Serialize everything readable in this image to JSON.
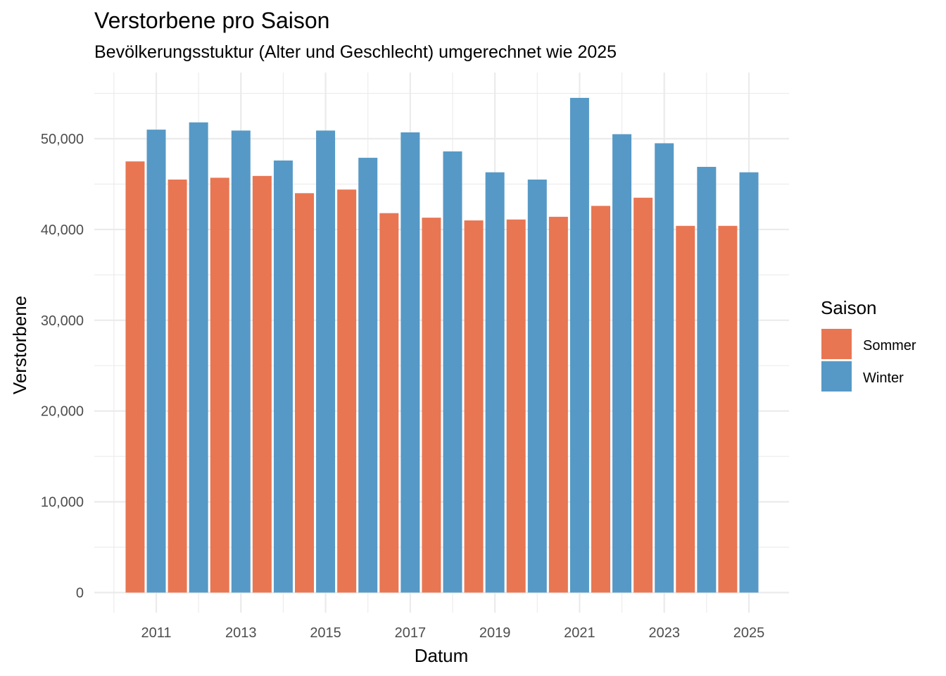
{
  "chart_data": {
    "type": "bar",
    "title": "Verstorbene pro Saison",
    "subtitle": "Bevölkerungsstuktur (Alter und Geschlecht) umgerechnet wie 2025",
    "xlabel": "Datum",
    "ylabel": "Verstorbene",
    "ylim": [
      0,
      55000
    ],
    "xlim": [
      2009.85,
      2025.85
    ],
    "y_ticks": [
      0,
      10000,
      20000,
      30000,
      40000,
      50000
    ],
    "y_tick_labels": [
      "0",
      "10,000",
      "20,000",
      "30,000",
      "40,000",
      "50,000"
    ],
    "x_ticks": [
      2011,
      2013,
      2015,
      2017,
      2019,
      2021,
      2023,
      2025
    ],
    "x_tick_labels": [
      "2011",
      "2013",
      "2015",
      "2017",
      "2019",
      "2021",
      "2023",
      "2025"
    ],
    "legend": {
      "title": "Saison",
      "position": "right",
      "entries": [
        "Sommer",
        "Winter"
      ]
    },
    "grid": true,
    "series": [
      {
        "name": "Sommer",
        "color": "#E87653",
        "x": [
          2010.5,
          2011.5,
          2012.5,
          2013.5,
          2014.5,
          2015.5,
          2016.5,
          2017.5,
          2018.5,
          2019.5,
          2020.5,
          2021.5,
          2022.5,
          2023.5,
          2024.5
        ],
        "values": [
          47500,
          45500,
          45700,
          45900,
          44000,
          44400,
          41800,
          41300,
          41000,
          41100,
          41400,
          42600,
          43500,
          40400,
          40400
        ]
      },
      {
        "name": "Winter",
        "color": "#5699C6",
        "x": [
          2011,
          2012,
          2013,
          2014,
          2015,
          2016,
          2017,
          2018,
          2019,
          2020,
          2021,
          2022,
          2023,
          2024,
          2025
        ],
        "values": [
          51000,
          51800,
          50900,
          47600,
          50900,
          47900,
          50700,
          48600,
          46300,
          45500,
          54500,
          50500,
          49500,
          46900,
          46300
        ]
      }
    ]
  }
}
